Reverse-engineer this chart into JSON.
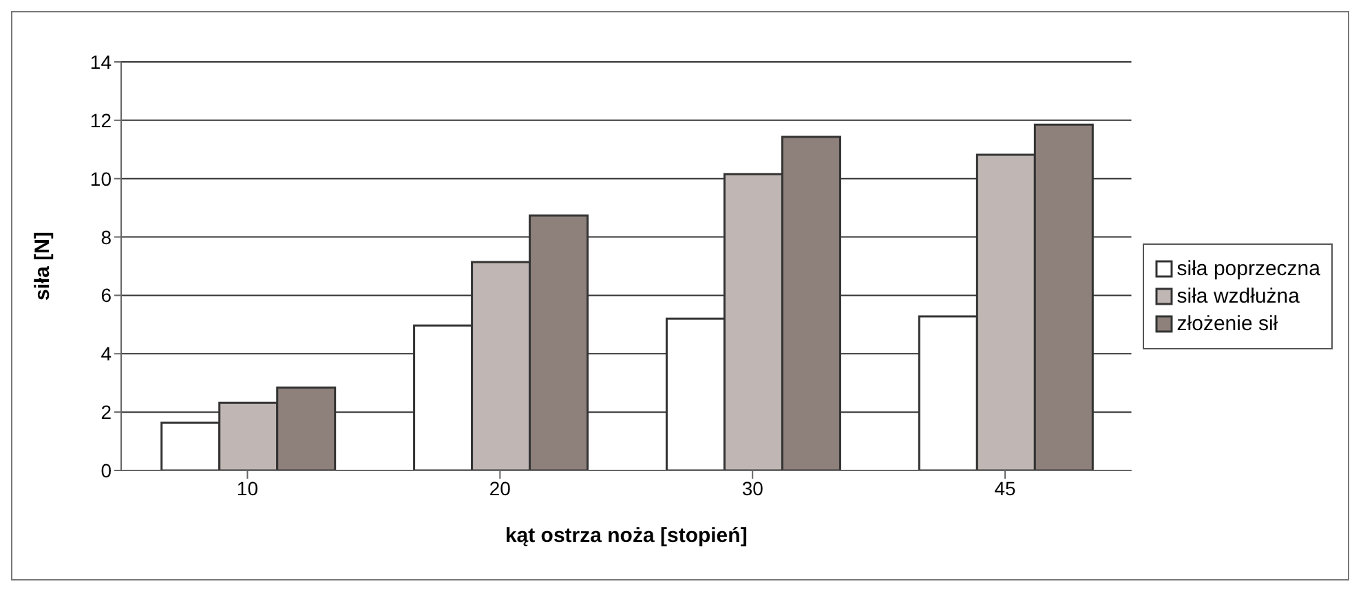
{
  "chart_data": {
    "type": "bar",
    "xlabel": "kąt ostrza noża [stopień]",
    "ylabel": "siła [N]",
    "categories": [
      "10",
      "20",
      "30",
      "45"
    ],
    "series": [
      {
        "name": "siła poprzeczna",
        "color": "#ffffff",
        "values": [
          1.64,
          4.97,
          5.2,
          5.28
        ]
      },
      {
        "name": "siła wzdłużna",
        "color": "#c0b6b3",
        "values": [
          2.32,
          7.14,
          10.15,
          10.82
        ]
      },
      {
        "name": "złożenie sił",
        "color": "#8e807b",
        "values": [
          2.84,
          8.74,
          11.43,
          11.85
        ]
      }
    ],
    "ylim": [
      0,
      14
    ],
    "yticks": [
      0,
      2,
      4,
      6,
      8,
      10,
      12,
      14
    ],
    "grid": "y",
    "legend": "right"
  }
}
